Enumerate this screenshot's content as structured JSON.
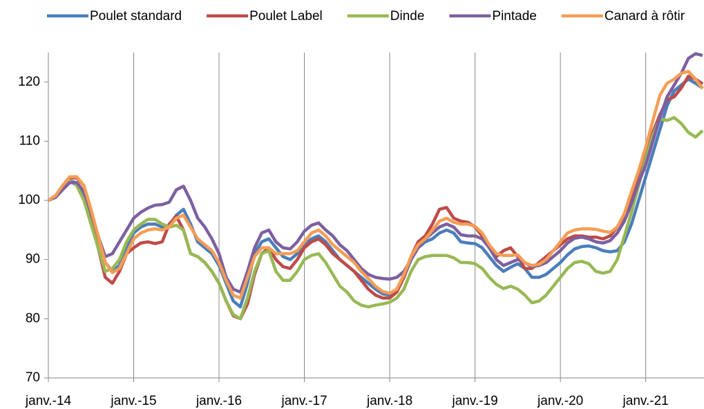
{
  "chart_data": {
    "type": "line",
    "categories": [
      "janv.-14",
      null,
      null,
      null,
      null,
      null,
      null,
      null,
      null,
      null,
      null,
      null,
      "janv.-15",
      null,
      null,
      null,
      null,
      null,
      null,
      null,
      null,
      null,
      null,
      null,
      "janv.-16",
      null,
      null,
      null,
      null,
      null,
      null,
      null,
      null,
      null,
      null,
      null,
      "janv.-17",
      null,
      null,
      null,
      null,
      null,
      null,
      null,
      null,
      null,
      null,
      null,
      "janv.-18",
      null,
      null,
      null,
      null,
      null,
      null,
      null,
      null,
      null,
      null,
      null,
      "janv.-19",
      null,
      null,
      null,
      null,
      null,
      null,
      null,
      null,
      null,
      null,
      null,
      "janv.-20",
      null,
      null,
      null,
      null,
      null,
      null,
      null,
      null,
      null,
      null,
      null,
      "janv.-21",
      null,
      null,
      null,
      null,
      null,
      null,
      null,
      null
    ],
    "series": [
      {
        "name": "Poulet standard",
        "color": "#4a7ebb",
        "values": [
          100,
          100.8,
          102,
          103.3,
          103,
          101,
          97,
          93,
          89.5,
          88,
          89,
          92,
          94.5,
          95.5,
          96,
          96,
          95.5,
          95.8,
          97.5,
          98.5,
          96,
          93,
          92,
          91,
          89,
          86,
          83,
          82,
          86,
          91,
          93,
          93.5,
          92,
          90.5,
          90,
          91,
          92.5,
          93.5,
          94,
          93,
          91.5,
          90,
          89,
          88,
          87,
          86,
          85,
          84.2,
          84,
          85,
          87,
          90,
          92,
          93,
          93.5,
          94.5,
          95,
          94.5,
          93,
          92.8,
          92.7,
          92,
          90.5,
          89,
          88,
          88.7,
          89.3,
          88.5,
          87,
          87,
          87.5,
          88.5,
          89.5,
          90.8,
          91.8,
          92.2,
          92.3,
          92,
          91.5,
          91.3,
          91.5,
          93,
          96,
          100,
          104,
          108,
          112,
          116,
          118.5,
          119.5,
          120.5,
          119.8,
          119
        ]
      },
      {
        "name": "Poulet Label",
        "color": "#be4b48",
        "values": [
          100,
          100.8,
          102.2,
          103.8,
          103.8,
          102.5,
          98,
          92,
          87,
          86,
          88,
          91,
          92,
          92.8,
          93,
          92.7,
          93,
          96,
          97.3,
          95,
          91,
          90.5,
          89.5,
          88,
          86,
          83,
          80.5,
          80,
          82.5,
          87.5,
          91,
          92,
          90,
          88.8,
          88.5,
          90,
          92,
          93,
          93.5,
          92.5,
          91,
          90,
          89,
          88,
          86.5,
          85,
          84,
          83.5,
          83.5,
          84.5,
          87,
          90.5,
          93,
          94,
          96,
          98.5,
          98.8,
          97,
          96.5,
          96.3,
          95.5,
          94,
          92,
          90.5,
          91.5,
          92,
          90.5,
          88.5,
          88.5,
          89.5,
          90.5,
          91.5,
          92.5,
          93.5,
          94,
          94,
          93.8,
          93.8,
          93.5,
          94,
          95.5,
          97.5,
          101,
          104.5,
          108,
          111.5,
          114.5,
          117,
          117.5,
          119,
          121,
          120.5,
          119.7
        ]
      },
      {
        "name": "Dinde",
        "color": "#98b954",
        "values": [
          100,
          100.8,
          102,
          103.3,
          102.5,
          100,
          96,
          92,
          88,
          88.5,
          90,
          93,
          95,
          96,
          96.8,
          96.8,
          96,
          95.5,
          95.8,
          95,
          91,
          90.5,
          89.5,
          88,
          86,
          83,
          80.7,
          80,
          83.5,
          88,
          91,
          91.5,
          88,
          86.5,
          86.5,
          88,
          90,
          90.7,
          91,
          89.5,
          87.5,
          85.5,
          84.5,
          83,
          82.3,
          82,
          82.3,
          82.5,
          82.8,
          83.5,
          85,
          88,
          90,
          90.5,
          90.7,
          90.7,
          90.7,
          90.3,
          89.5,
          89.5,
          89.3,
          88.5,
          87,
          85.8,
          85.1,
          85.5,
          85,
          84,
          82.7,
          83,
          84,
          85.5,
          87,
          88.5,
          89.5,
          89.7,
          89.3,
          88,
          87.7,
          88,
          90,
          94,
          98,
          102.5,
          107,
          111,
          113.8,
          113.5,
          114,
          113,
          111.5,
          110.7,
          111.8
        ]
      },
      {
        "name": "Pintade",
        "color": "#7d60a0",
        "values": [
          100,
          100.5,
          101.8,
          103,
          103,
          101.5,
          98,
          94,
          90.5,
          91,
          93,
          95,
          97,
          98,
          98.7,
          99.2,
          99.3,
          99.7,
          101.8,
          102.4,
          100,
          97,
          95.5,
          93.5,
          91,
          87,
          85,
          84.5,
          88,
          92,
          94.5,
          95,
          93,
          92,
          91.8,
          93,
          94.8,
          95.8,
          96.2,
          95,
          94,
          92.5,
          91.5,
          90,
          88.5,
          87.5,
          87,
          86.8,
          86.7,
          87,
          88,
          90,
          92,
          93.5,
          94.5,
          95.5,
          96,
          95.5,
          94.2,
          94,
          94,
          93.5,
          92,
          90,
          89,
          89.5,
          90,
          89.5,
          88.8,
          89,
          89.5,
          90.5,
          91.5,
          92.8,
          93.6,
          93.8,
          93.5,
          93,
          92.8,
          93.2,
          94.5,
          96.5,
          99.5,
          103,
          106,
          110,
          114,
          117.5,
          119.5,
          121.5,
          124,
          124.8,
          124.5
        ]
      },
      {
        "name": "Canard à rôtir",
        "color": "#f59d56",
        "values": [
          100,
          100.8,
          102.5,
          104,
          104,
          102.5,
          98.5,
          94,
          89.5,
          87.8,
          88.5,
          91,
          93.5,
          94.5,
          95,
          95.2,
          95,
          95.5,
          97,
          97.5,
          95.5,
          93.5,
          92.5,
          91.5,
          89.5,
          86.5,
          84,
          83.5,
          87,
          90.5,
          92,
          92,
          91,
          91,
          91,
          91.5,
          93,
          94.5,
          95,
          94,
          92.5,
          91.5,
          90.5,
          89.5,
          88,
          86.8,
          85.5,
          84.6,
          84.3,
          85,
          87.5,
          90.5,
          92.5,
          93.5,
          95,
          96.5,
          97,
          96.3,
          96,
          96,
          95.6,
          94.5,
          92.5,
          91,
          90.7,
          90.7,
          90.8,
          89.5,
          89,
          89.2,
          90,
          91.5,
          93,
          94.5,
          95,
          95.2,
          95.2,
          95.1,
          94.8,
          94.6,
          95.5,
          97.8,
          101.5,
          105,
          109,
          113.5,
          117.8,
          119.8,
          120.5,
          121.5,
          121.8,
          120.5,
          118.9
        ]
      }
    ],
    "ylim": [
      70,
      125
    ],
    "yticks": [
      70,
      80,
      90,
      100,
      110,
      120
    ],
    "grid": "x",
    "legend": "top"
  }
}
